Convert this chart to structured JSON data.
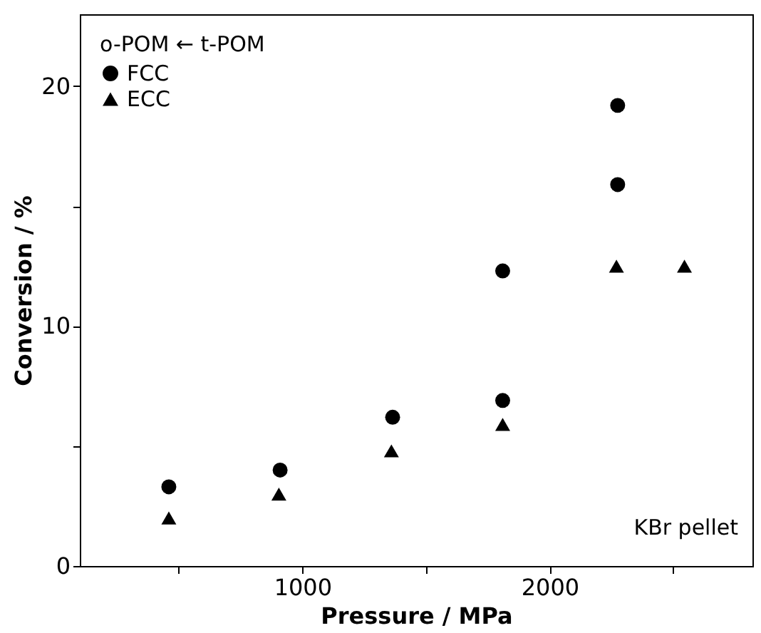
{
  "chart_data": {
    "type": "scatter",
    "xlabel": "Pressure / MPa",
    "ylabel": "Conversion / %",
    "legend_title": "o-POM ← t-POM",
    "legend": "top left",
    "grid": false,
    "xlim": [
      100,
      2820
    ],
    "ylim": [
      0,
      23
    ],
    "xticks": [
      {
        "value": 500,
        "label": null
      },
      1000,
      {
        "value": 1500,
        "label": null
      },
      2000,
      {
        "value": 2500,
        "label": null
      }
    ],
    "yticks": [
      0,
      {
        "value": 5,
        "label": null
      },
      10,
      {
        "value": 15,
        "label": null
      },
      20
    ],
    "series": [
      {
        "name": "FCC",
        "color": "#000000",
        "marker": "circle",
        "x": [
          460,
          910,
          1365,
          1810,
          1810,
          2275,
          2275
        ],
        "values": [
          3.3,
          4.0,
          6.2,
          12.3,
          6.9,
          19.2,
          15.9
        ]
      },
      {
        "name": "ECC",
        "color": "#000000",
        "marker": "triangle",
        "x": [
          460,
          905,
          1360,
          1810,
          2270,
          2545
        ],
        "values": [
          2.0,
          3.0,
          4.8,
          5.9,
          12.5,
          12.5
        ]
      }
    ],
    "annotations": [
      "KBr pellet"
    ]
  }
}
